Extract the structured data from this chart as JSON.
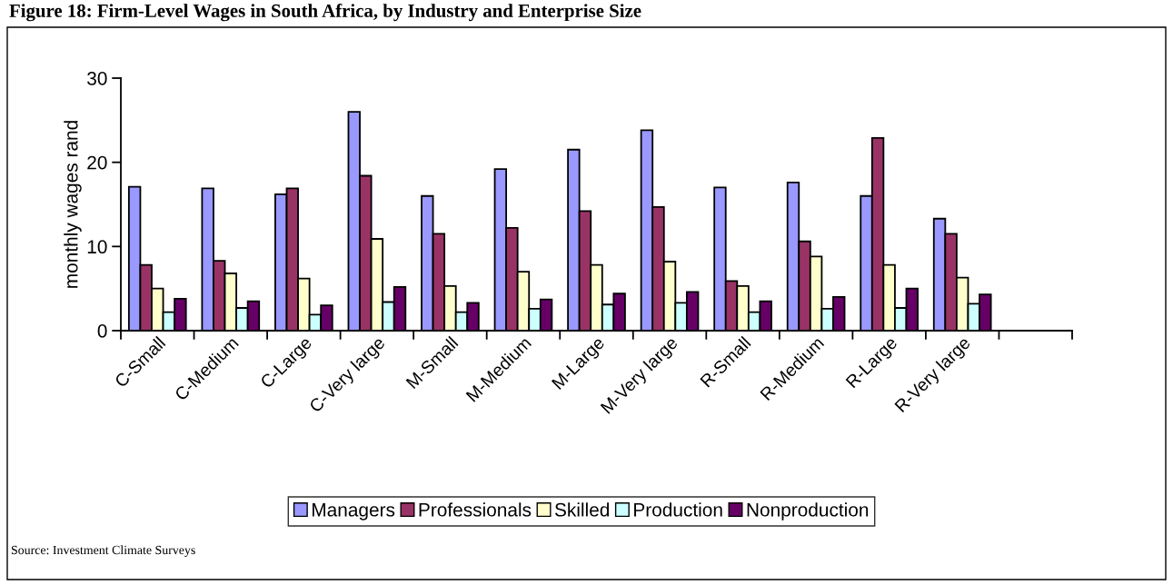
{
  "chart_data": {
    "type": "bar",
    "title": "Figure 18: Firm-Level Wages in South Africa, by Industry and Enterprise Size",
    "ylabel": "monthly wages rand",
    "categories": [
      "C-Small",
      "C-Medium",
      "C-Large",
      "C-Very large",
      "M-Small",
      "M-Medium",
      "M-Large",
      "M-Very large",
      "R-Small",
      "R-Medium",
      "R-Large",
      "R-Very large",
      null
    ],
    "series": [
      {
        "name": "Managers",
        "color": "#9999ff",
        "values": [
          17.1,
          16.9,
          16.2,
          26.0,
          16.0,
          19.2,
          21.5,
          23.8,
          17.0,
          17.6,
          16.0,
          13.3,
          null
        ]
      },
      {
        "name": "Professionals",
        "color": "#993366",
        "values": [
          7.8,
          8.3,
          16.9,
          18.4,
          11.5,
          12.2,
          14.2,
          14.7,
          5.9,
          10.6,
          22.9,
          11.5,
          null
        ]
      },
      {
        "name": "Skilled",
        "color": "#ffffcc",
        "values": [
          5.0,
          6.8,
          6.2,
          10.9,
          5.3,
          7.0,
          7.8,
          8.2,
          5.3,
          8.8,
          7.8,
          6.3,
          null
        ]
      },
      {
        "name": "Production",
        "color": "#ccffff",
        "values": [
          2.2,
          2.7,
          1.9,
          3.4,
          2.2,
          2.6,
          3.1,
          3.3,
          2.2,
          2.6,
          2.7,
          3.2,
          null
        ]
      },
      {
        "name": "Nonproduction",
        "color": "#660066",
        "values": [
          3.8,
          3.5,
          3.0,
          5.2,
          3.3,
          3.7,
          4.4,
          4.6,
          3.5,
          4.0,
          5.0,
          4.3,
          null
        ]
      }
    ],
    "ylim": [
      0,
      30
    ],
    "yticks": [
      0,
      10,
      20,
      30
    ],
    "grid": false,
    "legend": "bottom",
    "annotations": [
      "Source: Investment Climate Surveys"
    ]
  }
}
